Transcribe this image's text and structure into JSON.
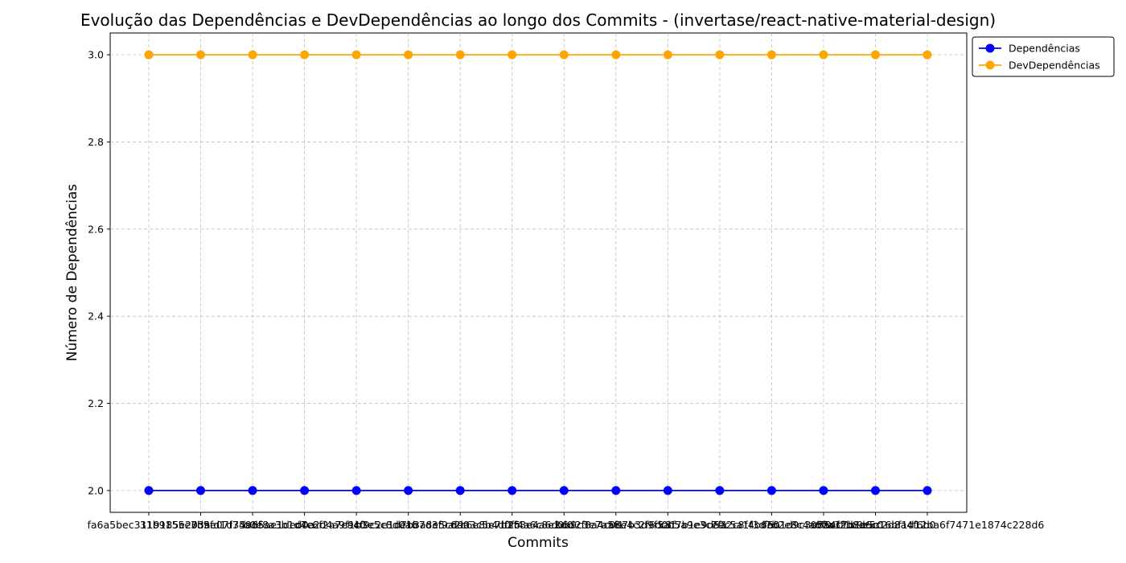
{
  "chart_data": {
    "type": "line",
    "title": "Evolução das Dependências e DevDependências ao longo dos Commits - (invertase/react-native-material-design)",
    "xlabel": "Commits",
    "ylabel": "Número de Dependências",
    "categories": [
      "fa6a5bec3119185e203a",
      "31b9155e7d9e07f7496f",
      "3b5fd1d35ad5ae1ded0a",
      "b0e8a3b1d4c6f2a7e9c0",
      "c7e2d4a9f1b3e5c8d0a6",
      "a4f9c2e1d7b3a8e5c6d0",
      "e1b7d3f9a2c6e8b4d0f5",
      "d9a3c5e7b1f4a6c8e2d0",
      "f2c8e4a6d0b9c3e7a5f1",
      "b6d2f8a4c0e7b3d9f5a1",
      "a8e4c2f6d0b5a9e3c7f1",
      "c3f7b1e9d5a2c8f4b6e0",
      "e9c5a1f3d7b2e8c4a6f0",
      "f5b1d9c3e7a4f2b8d6c0",
      "d7a3f1b9e5c2d8a4f6b0",
      "0b5ec7b1e5c16bf1d12ba6f7471e1874c228d6"
    ],
    "series": [
      {
        "name": "Dependências",
        "values": [
          2,
          2,
          2,
          2,
          2,
          2,
          2,
          2,
          2,
          2,
          2,
          2,
          2,
          2,
          2,
          2
        ],
        "color": "#0000ff"
      },
      {
        "name": "DevDependências",
        "values": [
          3,
          3,
          3,
          3,
          3,
          3,
          3,
          3,
          3,
          3,
          3,
          3,
          3,
          3,
          3,
          3
        ],
        "color": "#ffa500"
      }
    ],
    "ylim": [
      1.95,
      3.05
    ],
    "yticks": [
      "2.0",
      "2.2",
      "2.4",
      "2.6",
      "2.8",
      "3.0"
    ],
    "grid": true,
    "legend": "upper-right-outside",
    "marker": "circle"
  }
}
